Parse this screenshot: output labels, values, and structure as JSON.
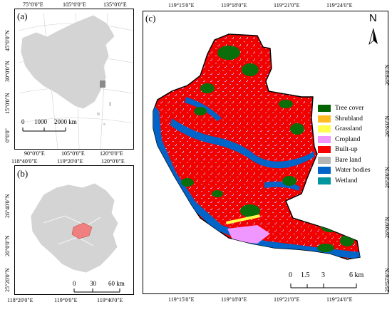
{
  "panels": {
    "a": {
      "label": "(a)",
      "top_lon": [
        "75°0'0\"E",
        "105°0'0\"E",
        "135°0'0\"E"
      ],
      "bottom_lon": [
        "90°0'0\"E",
        "105°0'0\"E",
        "120°0'0\"E"
      ],
      "left_lat": [
        "45°0'0\"N",
        "30°0'0\"N",
        "15°0'0\"N",
        "0°0'0\""
      ],
      "scale": {
        "ticks": [
          "0",
          "1000",
          "2000 km"
        ]
      }
    },
    "b": {
      "label": "(b)",
      "top_lon": [
        "118°40'0\"E",
        "119°20'0\"E",
        "120°0'0\"E"
      ],
      "bottom_lon": [
        "118°20'0\"E",
        "119°0'0\"E",
        "119°40'0\"E"
      ],
      "left_lat": [
        "26°40'0\"N",
        "26°0'0\"N",
        "25°20'0\"N"
      ],
      "scale": {
        "ticks": [
          "0",
          "30",
          "60 km"
        ]
      }
    },
    "c": {
      "label": "(c)",
      "top_lon": [
        "119°15'0\"E",
        "119°18'0\"E",
        "119°21'0\"E",
        "119°24'0\"E"
      ],
      "bottom_lon": [
        "119°15'0\"E",
        "119°18'0\"E",
        "119°21'0\"E",
        "119°24'0\"E"
      ],
      "right_lat": [
        "26°9'0\"N",
        "26°6'0\"N",
        "26°3'0\"N",
        "26°0'0\"N",
        "25°57'0\"N"
      ],
      "north": "N",
      "scale": {
        "ticks": [
          "0",
          "1.5",
          "3",
          "6 km"
        ]
      }
    }
  },
  "legend": [
    {
      "label": "Tree cover",
      "color": "#006400"
    },
    {
      "label": "Shrubland",
      "color": "#ffbb22"
    },
    {
      "label": "Grassland",
      "color": "#ffff4c"
    },
    {
      "label": "Cropland",
      "color": "#f096ff"
    },
    {
      "label": "Built-up",
      "color": "#fa0000"
    },
    {
      "label": "Bare land",
      "color": "#b4b4b4"
    },
    {
      "label": "Water bodies",
      "color": "#0064c8"
    },
    {
      "label": "Wetland",
      "color": "#0096a0"
    }
  ]
}
